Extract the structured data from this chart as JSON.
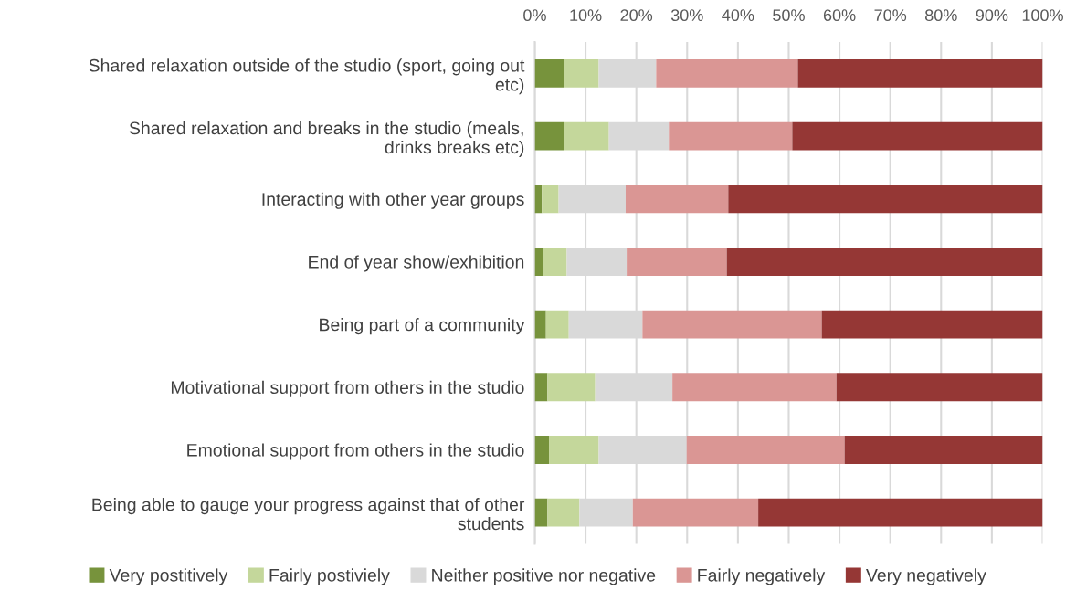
{
  "chart_data": {
    "type": "bar",
    "orientation": "horizontal",
    "stacked": true,
    "categories": [
      "Shared relaxation outside of the studio (sport, going out\netc)",
      "Shared relaxation and breaks in the studio (meals,\ndrinks breaks etc)",
      "Interacting with other year groups",
      "End of year show/exhibition",
      "Being part of a community",
      "Motivational support from others in the studio",
      "Emotional support from others in the studio",
      "Being able to gauge your progress against that of other\nstudents"
    ],
    "series": [
      {
        "name": "Very postitively",
        "color": "#77933c",
        "values": [
          5.8,
          5.8,
          1.4,
          1.7,
          2.2,
          2.5,
          2.8,
          2.5
        ]
      },
      {
        "name": "Fairly postiviely",
        "color": "#c4d79b",
        "values": [
          6.8,
          8.8,
          3.3,
          4.6,
          4.5,
          9.4,
          9.8,
          6.3
        ]
      },
      {
        "name": "Neither positive nor negative",
        "color": "#d9d9d9",
        "values": [
          11.3,
          11.8,
          13.2,
          11.8,
          14.5,
          15.2,
          17.3,
          10.5
        ]
      },
      {
        "name": "Fairly negatively",
        "color": "#da9694",
        "values": [
          27.9,
          24.3,
          20.2,
          19.7,
          35.3,
          32.3,
          31.1,
          24.7
        ]
      },
      {
        "name": "Very negatively",
        "color": "#953735",
        "values": [
          48.2,
          49.3,
          61.9,
          62.2,
          43.5,
          40.6,
          39.0,
          56.0
        ]
      }
    ],
    "xlim": [
      0,
      100
    ],
    "xticks": [
      {
        "value": 0,
        "label": "0%"
      },
      {
        "value": 10,
        "label": "10%"
      },
      {
        "value": 20,
        "label": "20%"
      },
      {
        "value": 30,
        "label": "30%"
      },
      {
        "value": 40,
        "label": "40%"
      },
      {
        "value": 50,
        "label": "50%"
      },
      {
        "value": 60,
        "label": "60%"
      },
      {
        "value": 70,
        "label": "70%"
      },
      {
        "value": 80,
        "label": "80%"
      },
      {
        "value": 90,
        "label": "90%"
      },
      {
        "value": 100,
        "label": "100%"
      }
    ],
    "grid": "x",
    "legend": "bottom"
  }
}
